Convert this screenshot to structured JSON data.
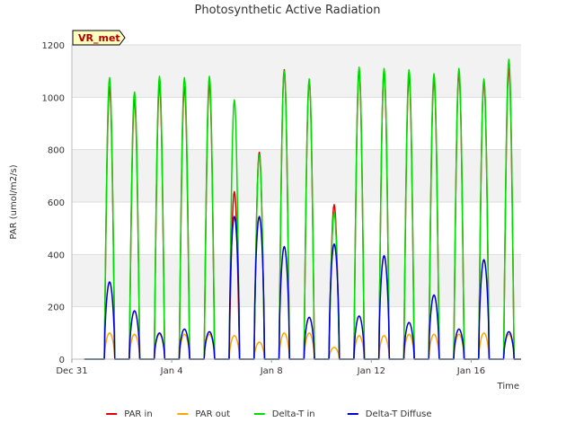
{
  "chart_data": {
    "type": "line",
    "title": "Photosynthetic Active Radiation",
    "xlabel": "Time",
    "ylabel": "PAR (umol/m2/s)",
    "site_label": "VR_met",
    "ylim": [
      0,
      1200
    ],
    "xlim": [
      "2024-12-31",
      "2025-01-18"
    ],
    "x_tick_labels": [
      {
        "date": "2024-12-31",
        "label": "Dec 31"
      },
      {
        "date": "2025-01-04",
        "label": "Jan 4"
      },
      {
        "date": "2025-01-08",
        "label": "Jan 8"
      },
      {
        "date": "2025-01-12",
        "label": "Jan 12"
      },
      {
        "date": "2025-01-16",
        "label": "Jan 16"
      }
    ],
    "y_ticks": [
      0,
      200,
      400,
      600,
      800,
      1000,
      1200
    ],
    "grid": true,
    "legend_position": "bottom",
    "daily_series": {
      "dates": [
        "2025-01-01",
        "2025-01-02",
        "2025-01-03",
        "2025-01-04",
        "2025-01-05",
        "2025-01-06",
        "2025-01-07",
        "2025-01-08",
        "2025-01-09",
        "2025-01-10",
        "2025-01-11",
        "2025-01-12",
        "2025-01-13",
        "2025-01-14",
        "2025-01-15",
        "2025-01-16",
        "2025-01-17"
      ],
      "series": [
        {
          "name": "PAR in",
          "color": "#dd0000",
          "daily_peaks": [
            1040,
            990,
            1050,
            1040,
            1050,
            640,
            790,
            1105,
            1060,
            590,
            1100,
            1100,
            1080,
            1070,
            1090,
            1060,
            1110
          ]
        },
        {
          "name": "PAR out",
          "color": "#ffa500",
          "daily_peaks": [
            100,
            95,
            95,
            95,
            95,
            90,
            65,
            100,
            100,
            45,
            90,
            90,
            95,
            95,
            95,
            100,
            95
          ]
        },
        {
          "name": "Delta-T in",
          "color": "#00dd00",
          "daily_peaks": [
            1075,
            1020,
            1080,
            1075,
            1080,
            990,
            780,
            1100,
            1070,
            560,
            1115,
            1110,
            1105,
            1090,
            1110,
            1070,
            1145
          ]
        },
        {
          "name": "Delta-T Diffuse",
          "color": "#0000cc",
          "daily_peaks": [
            295,
            185,
            100,
            115,
            105,
            545,
            545,
            430,
            160,
            440,
            165,
            395,
            140,
            245,
            115,
            380,
            105
          ]
        }
      ]
    }
  }
}
